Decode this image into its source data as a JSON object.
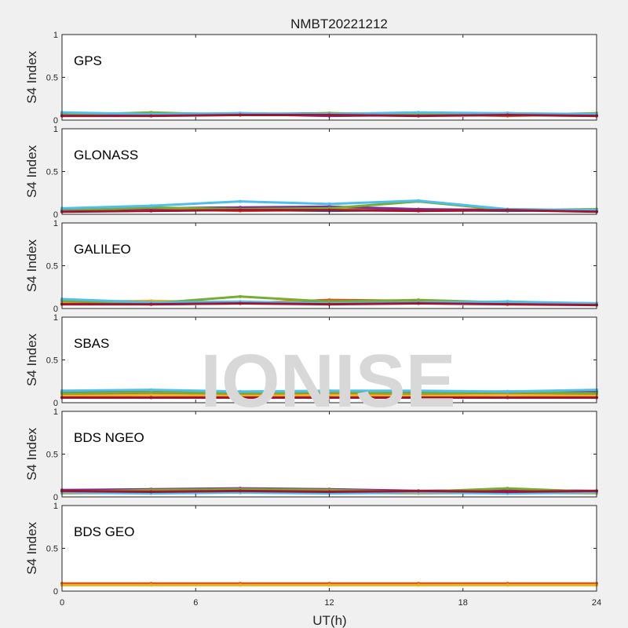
{
  "title": "NMBT20221212",
  "watermark": "IONISE",
  "ylabel": "S4 Index",
  "xlabel": "UT(h)",
  "colors": [
    "#0072BD",
    "#D95319",
    "#EDB120",
    "#7E2F8E",
    "#77AC30",
    "#4DBEEE",
    "#A2142F"
  ],
  "chart_data": [
    {
      "type": "scatter",
      "panel": "GPS",
      "xlim": [
        0,
        24
      ],
      "ylim": [
        0,
        1
      ],
      "xticks": [
        "0",
        "6",
        "12",
        "18",
        "24"
      ],
      "yticks": [
        "0",
        "0.5",
        "1"
      ],
      "series": [
        {
          "x": [
            0,
            4,
            8,
            12,
            16,
            20,
            24
          ],
          "y": [
            0.06,
            0.08,
            0.07,
            0.08,
            0.06,
            0.07,
            0.06
          ]
        },
        {
          "x": [
            0,
            4,
            8,
            12,
            16,
            20,
            24
          ],
          "y": [
            0.07,
            0.06,
            0.08,
            0.06,
            0.07,
            0.05,
            0.07
          ]
        },
        {
          "x": [
            0,
            4,
            8,
            12,
            16,
            20,
            24
          ],
          "y": [
            0.05,
            0.07,
            0.06,
            0.07,
            0.08,
            0.06,
            0.05
          ]
        },
        {
          "x": [
            0,
            4,
            8,
            12,
            16,
            20,
            24
          ],
          "y": [
            0.08,
            0.06,
            0.07,
            0.05,
            0.06,
            0.08,
            0.06
          ]
        },
        {
          "x": [
            0,
            4,
            8,
            12,
            16,
            20,
            24
          ],
          "y": [
            0.06,
            0.09,
            0.06,
            0.08,
            0.07,
            0.06,
            0.08
          ]
        },
        {
          "x": [
            0,
            4,
            8,
            12,
            16,
            20,
            24
          ],
          "y": [
            0.09,
            0.07,
            0.08,
            0.07,
            0.09,
            0.08,
            0.07
          ]
        },
        {
          "x": [
            0,
            4,
            8,
            12,
            16,
            20,
            24
          ],
          "y": [
            0.05,
            0.05,
            0.06,
            0.06,
            0.05,
            0.06,
            0.05
          ]
        }
      ]
    },
    {
      "type": "scatter",
      "panel": "GLONASS",
      "xlim": [
        0,
        24
      ],
      "ylim": [
        0,
        1
      ],
      "xticks": [
        "0",
        "6",
        "12",
        "18",
        "24"
      ],
      "yticks": [
        "0",
        "0.5",
        "1"
      ],
      "series": [
        {
          "x": [
            0,
            4,
            8,
            12,
            16,
            20,
            24
          ],
          "y": [
            0.05,
            0.04,
            0.05,
            0.04,
            0.05,
            0.04,
            0.05
          ]
        },
        {
          "x": [
            0,
            4,
            8,
            12,
            16,
            20,
            24
          ],
          "y": [
            0.04,
            0.06,
            0.04,
            0.05,
            0.04,
            0.05,
            0.04
          ]
        },
        {
          "x": [
            0,
            4,
            8,
            12,
            16,
            20,
            24
          ],
          "y": [
            0.06,
            0.05,
            0.05,
            0.06,
            0.05,
            0.06,
            0.05
          ]
        },
        {
          "x": [
            0,
            4,
            8,
            12,
            16,
            20,
            24
          ],
          "y": [
            0.05,
            0.07,
            0.08,
            0.09,
            0.06,
            0.05,
            0.04
          ]
        },
        {
          "x": [
            0,
            4,
            8,
            12,
            16,
            20,
            24
          ],
          "y": [
            0.04,
            0.08,
            0.06,
            0.07,
            0.15,
            0.05,
            0.06
          ]
        },
        {
          "x": [
            0,
            4,
            8,
            12,
            16,
            20,
            24
          ],
          "y": [
            0.07,
            0.1,
            0.15,
            0.12,
            0.16,
            0.06,
            0.05
          ]
        },
        {
          "x": [
            0,
            4,
            8,
            12,
            16,
            20,
            24
          ],
          "y": [
            0.03,
            0.04,
            0.05,
            0.05,
            0.04,
            0.05,
            0.03
          ]
        }
      ]
    },
    {
      "type": "scatter",
      "panel": "GALILEO",
      "xlim": [
        0,
        24
      ],
      "ylim": [
        0,
        1
      ],
      "xticks": [
        "0",
        "6",
        "12",
        "18",
        "24"
      ],
      "yticks": [
        "0",
        "0.5",
        "1"
      ],
      "series": [
        {
          "x": [
            0,
            4,
            8,
            12,
            16,
            20,
            24
          ],
          "y": [
            0.06,
            0.05,
            0.06,
            0.07,
            0.06,
            0.08,
            0.05
          ]
        },
        {
          "x": [
            0,
            4,
            8,
            12,
            16,
            20,
            24
          ],
          "y": [
            0.07,
            0.08,
            0.06,
            0.1,
            0.09,
            0.07,
            0.06
          ]
        },
        {
          "x": [
            0,
            4,
            8,
            12,
            16,
            20,
            24
          ],
          "y": [
            0.08,
            0.09,
            0.07,
            0.08,
            0.06,
            0.07,
            0.06
          ]
        },
        {
          "x": [
            0,
            4,
            8,
            12,
            16,
            20,
            24
          ],
          "y": [
            0.1,
            0.07,
            0.06,
            0.07,
            0.08,
            0.06,
            0.05
          ]
        },
        {
          "x": [
            0,
            4,
            8,
            12,
            16,
            20,
            24
          ],
          "y": [
            0.09,
            0.06,
            0.14,
            0.08,
            0.1,
            0.07,
            0.06
          ]
        },
        {
          "x": [
            0,
            4,
            8,
            12,
            16,
            20,
            24
          ],
          "y": [
            0.11,
            0.07,
            0.08,
            0.06,
            0.07,
            0.08,
            0.06
          ]
        },
        {
          "x": [
            0,
            4,
            8,
            12,
            16,
            20,
            24
          ],
          "y": [
            0.05,
            0.05,
            0.06,
            0.05,
            0.06,
            0.05,
            0.04
          ]
        }
      ]
    },
    {
      "type": "scatter",
      "panel": "SBAS",
      "xlim": [
        0,
        24
      ],
      "ylim": [
        0,
        1
      ],
      "xticks": [
        "0",
        "6",
        "12",
        "18",
        "24"
      ],
      "yticks": [
        "0",
        "0.5",
        "1"
      ],
      "series": [
        {
          "x": [
            0,
            4,
            8,
            12,
            16,
            20,
            24
          ],
          "y": [
            0.12,
            0.13,
            0.12,
            0.13,
            0.12,
            0.13,
            0.12
          ]
        },
        {
          "x": [
            0,
            4,
            8,
            12,
            16,
            20,
            24
          ],
          "y": [
            0.1,
            0.11,
            0.1,
            0.11,
            0.1,
            0.11,
            0.1
          ]
        },
        {
          "x": [
            0,
            4,
            8,
            12,
            16,
            20,
            24
          ],
          "y": [
            0.08,
            0.09,
            0.08,
            0.09,
            0.08,
            0.09,
            0.08
          ]
        },
        {
          "x": [
            0,
            4,
            8,
            12,
            16,
            20,
            24
          ],
          "y": [
            0.13,
            0.14,
            0.12,
            0.13,
            0.13,
            0.12,
            0.14
          ]
        },
        {
          "x": [
            0,
            4,
            8,
            12,
            16,
            20,
            24
          ],
          "y": [
            0.11,
            0.12,
            0.11,
            0.12,
            0.11,
            0.12,
            0.11
          ]
        },
        {
          "x": [
            0,
            4,
            8,
            12,
            16,
            20,
            24
          ],
          "y": [
            0.14,
            0.15,
            0.13,
            0.14,
            0.14,
            0.13,
            0.15
          ]
        },
        {
          "x": [
            0,
            4,
            8,
            12,
            16,
            20,
            24
          ],
          "y": [
            0.06,
            0.06,
            0.06,
            0.06,
            0.06,
            0.06,
            0.06
          ]
        }
      ]
    },
    {
      "type": "scatter",
      "panel": "BDS NGEO",
      "xlim": [
        0,
        24
      ],
      "ylim": [
        0,
        1
      ],
      "xticks": [
        "0",
        "6",
        "12",
        "18",
        "24"
      ],
      "yticks": [
        "0",
        "0.5",
        "1"
      ],
      "series": [
        {
          "x": [
            0,
            4,
            8,
            12,
            16,
            20,
            24
          ],
          "y": [
            0.05,
            0.06,
            0.05,
            0.06,
            0.05,
            0.06,
            0.05
          ]
        },
        {
          "x": [
            0,
            4,
            8,
            12,
            16,
            20,
            24
          ],
          "y": [
            0.06,
            0.07,
            0.08,
            0.07,
            0.06,
            0.07,
            0.06
          ]
        },
        {
          "x": [
            0,
            4,
            8,
            12,
            16,
            20,
            24
          ],
          "y": [
            0.04,
            0.05,
            0.06,
            0.05,
            0.04,
            0.05,
            0.04
          ]
        },
        {
          "x": [
            0,
            4,
            8,
            12,
            16,
            20,
            24
          ],
          "y": [
            0.08,
            0.09,
            0.1,
            0.09,
            0.07,
            0.08,
            0.07
          ]
        },
        {
          "x": [
            0,
            4,
            8,
            12,
            16,
            20,
            24
          ],
          "y": [
            0.06,
            0.08,
            0.09,
            0.08,
            0.06,
            0.1,
            0.06
          ]
        },
        {
          "x": [
            0,
            4,
            8,
            12,
            16,
            20,
            24
          ],
          "y": [
            0.05,
            0.04,
            0.05,
            0.04,
            0.05,
            0.04,
            0.05
          ]
        },
        {
          "x": [
            0,
            4,
            8,
            12,
            16,
            20,
            24
          ],
          "y": [
            0.07,
            0.06,
            0.07,
            0.06,
            0.07,
            0.06,
            0.07
          ]
        }
      ]
    },
    {
      "type": "scatter",
      "panel": "BDS GEO",
      "xlim": [
        0,
        24
      ],
      "ylim": [
        0,
        1
      ],
      "xticks": [
        "0",
        "6",
        "12",
        "18",
        "24"
      ],
      "yticks": [
        "0",
        "0.5",
        "1"
      ],
      "series": [
        {
          "x": [
            0,
            4,
            8,
            12,
            16,
            20,
            24
          ],
          "y": [
            0.08,
            0.08,
            0.08,
            0.08,
            0.08,
            0.08,
            0.08
          ]
        },
        {
          "x": [
            0,
            4,
            8,
            12,
            16,
            20,
            24
          ],
          "y": [
            0.09,
            0.09,
            0.09,
            0.09,
            0.09,
            0.09,
            0.09
          ]
        },
        {
          "x": [
            0,
            4,
            8,
            12,
            16,
            20,
            24
          ],
          "y": [
            0.07,
            0.07,
            0.07,
            0.07,
            0.07,
            0.07,
            0.07
          ]
        }
      ]
    }
  ]
}
